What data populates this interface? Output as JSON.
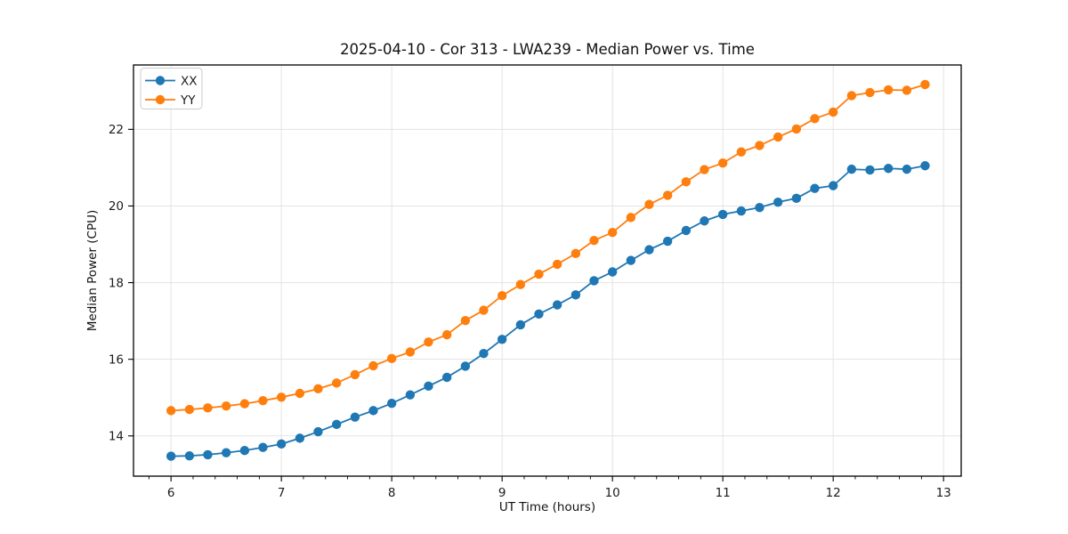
{
  "chart_data": {
    "type": "line",
    "title": "2025-04-10 - Cor 313 - LWA239 - Median Power vs. Time",
    "xlabel": "UT Time (hours)",
    "ylabel": "Median Power (CPU)",
    "x": [
      6.0,
      6.167,
      6.333,
      6.5,
      6.667,
      6.833,
      7.0,
      7.167,
      7.333,
      7.5,
      7.667,
      7.833,
      8.0,
      8.167,
      8.333,
      8.5,
      8.667,
      8.833,
      9.0,
      9.167,
      9.333,
      9.5,
      9.667,
      9.833,
      10.0,
      10.167,
      10.333,
      10.5,
      10.667,
      10.833,
      11.0,
      11.167,
      11.333,
      11.5,
      11.667,
      11.833,
      12.0,
      12.167,
      12.333,
      12.5,
      12.667,
      12.833
    ],
    "series": [
      {
        "name": "XX",
        "color": "#1f77b4",
        "values": [
          13.47,
          13.48,
          13.51,
          13.56,
          13.62,
          13.7,
          13.79,
          13.94,
          14.11,
          14.3,
          14.49,
          14.66,
          14.85,
          15.07,
          15.3,
          15.53,
          15.82,
          16.15,
          16.52,
          16.9,
          17.18,
          17.42,
          17.68,
          18.05,
          18.28,
          18.58,
          18.86,
          19.08,
          19.36,
          19.61,
          19.78,
          19.87,
          19.96,
          20.1,
          20.2,
          20.46,
          20.53,
          20.96,
          20.94,
          20.98,
          20.96,
          21.05
        ]
      },
      {
        "name": "YY",
        "color": "#ff7f0e",
        "values": [
          14.66,
          14.69,
          14.73,
          14.78,
          14.84,
          14.92,
          15.01,
          15.11,
          15.23,
          15.38,
          15.6,
          15.83,
          16.02,
          16.19,
          16.45,
          16.64,
          17.01,
          17.28,
          17.66,
          17.95,
          18.22,
          18.48,
          18.76,
          19.1,
          19.31,
          19.7,
          20.04,
          20.28,
          20.63,
          20.95,
          21.12,
          21.41,
          21.58,
          21.8,
          22.01,
          22.28,
          22.45,
          22.88,
          22.96,
          23.03,
          23.02,
          23.17
        ]
      }
    ],
    "xlim": [
      5.66,
      13.16
    ],
    "ylim": [
      12.95,
      23.68
    ],
    "xticks": [
      6,
      7,
      8,
      9,
      10,
      11,
      12,
      13
    ],
    "yticks": [
      14,
      16,
      18,
      20,
      22
    ],
    "x_minor_tick_step": 0.2,
    "grid": true,
    "grid_color": "#e3e3e3",
    "spine_color": "#000000",
    "tick_label_color": "#1c1c1c",
    "background": "#ffffff",
    "legend_position": "upper left",
    "marker": "circle"
  }
}
